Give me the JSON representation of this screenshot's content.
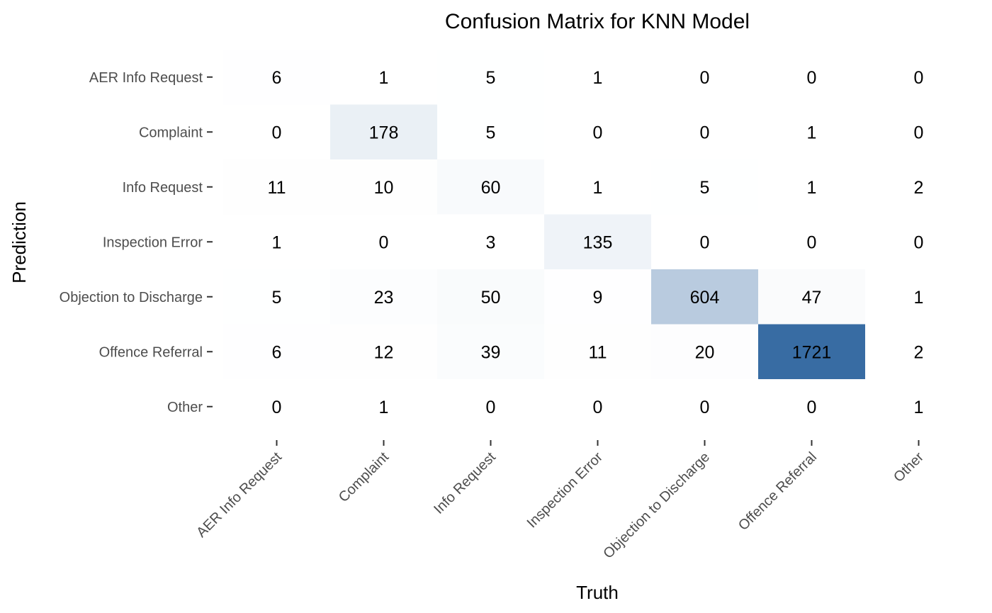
{
  "chart_data": {
    "type": "heatmap",
    "title": "Confusion Matrix for KNN Model",
    "xlabel": "Truth",
    "ylabel": "Prediction",
    "x_categories": [
      "AER Info Request",
      "Complaint",
      "Info Request",
      "Inspection Error",
      "Objection to Discharge",
      "Offence Referral",
      "Other"
    ],
    "y_categories": [
      "AER Info Request",
      "Complaint",
      "Info Request",
      "Inspection Error",
      "Objection to Discharge",
      "Offence Referral",
      "Other"
    ],
    "values": [
      [
        6,
        1,
        5,
        1,
        0,
        0,
        0
      ],
      [
        0,
        178,
        5,
        0,
        0,
        1,
        0
      ],
      [
        11,
        10,
        60,
        1,
        5,
        1,
        2
      ],
      [
        1,
        0,
        3,
        135,
        0,
        0,
        0
      ],
      [
        5,
        23,
        50,
        9,
        604,
        47,
        1
      ],
      [
        6,
        12,
        39,
        11,
        20,
        1721,
        2
      ],
      [
        0,
        1,
        0,
        0,
        0,
        0,
        1
      ]
    ],
    "color_low": "#ffffff",
    "color_high": "#386ca3",
    "grid": false,
    "legend": "none"
  }
}
